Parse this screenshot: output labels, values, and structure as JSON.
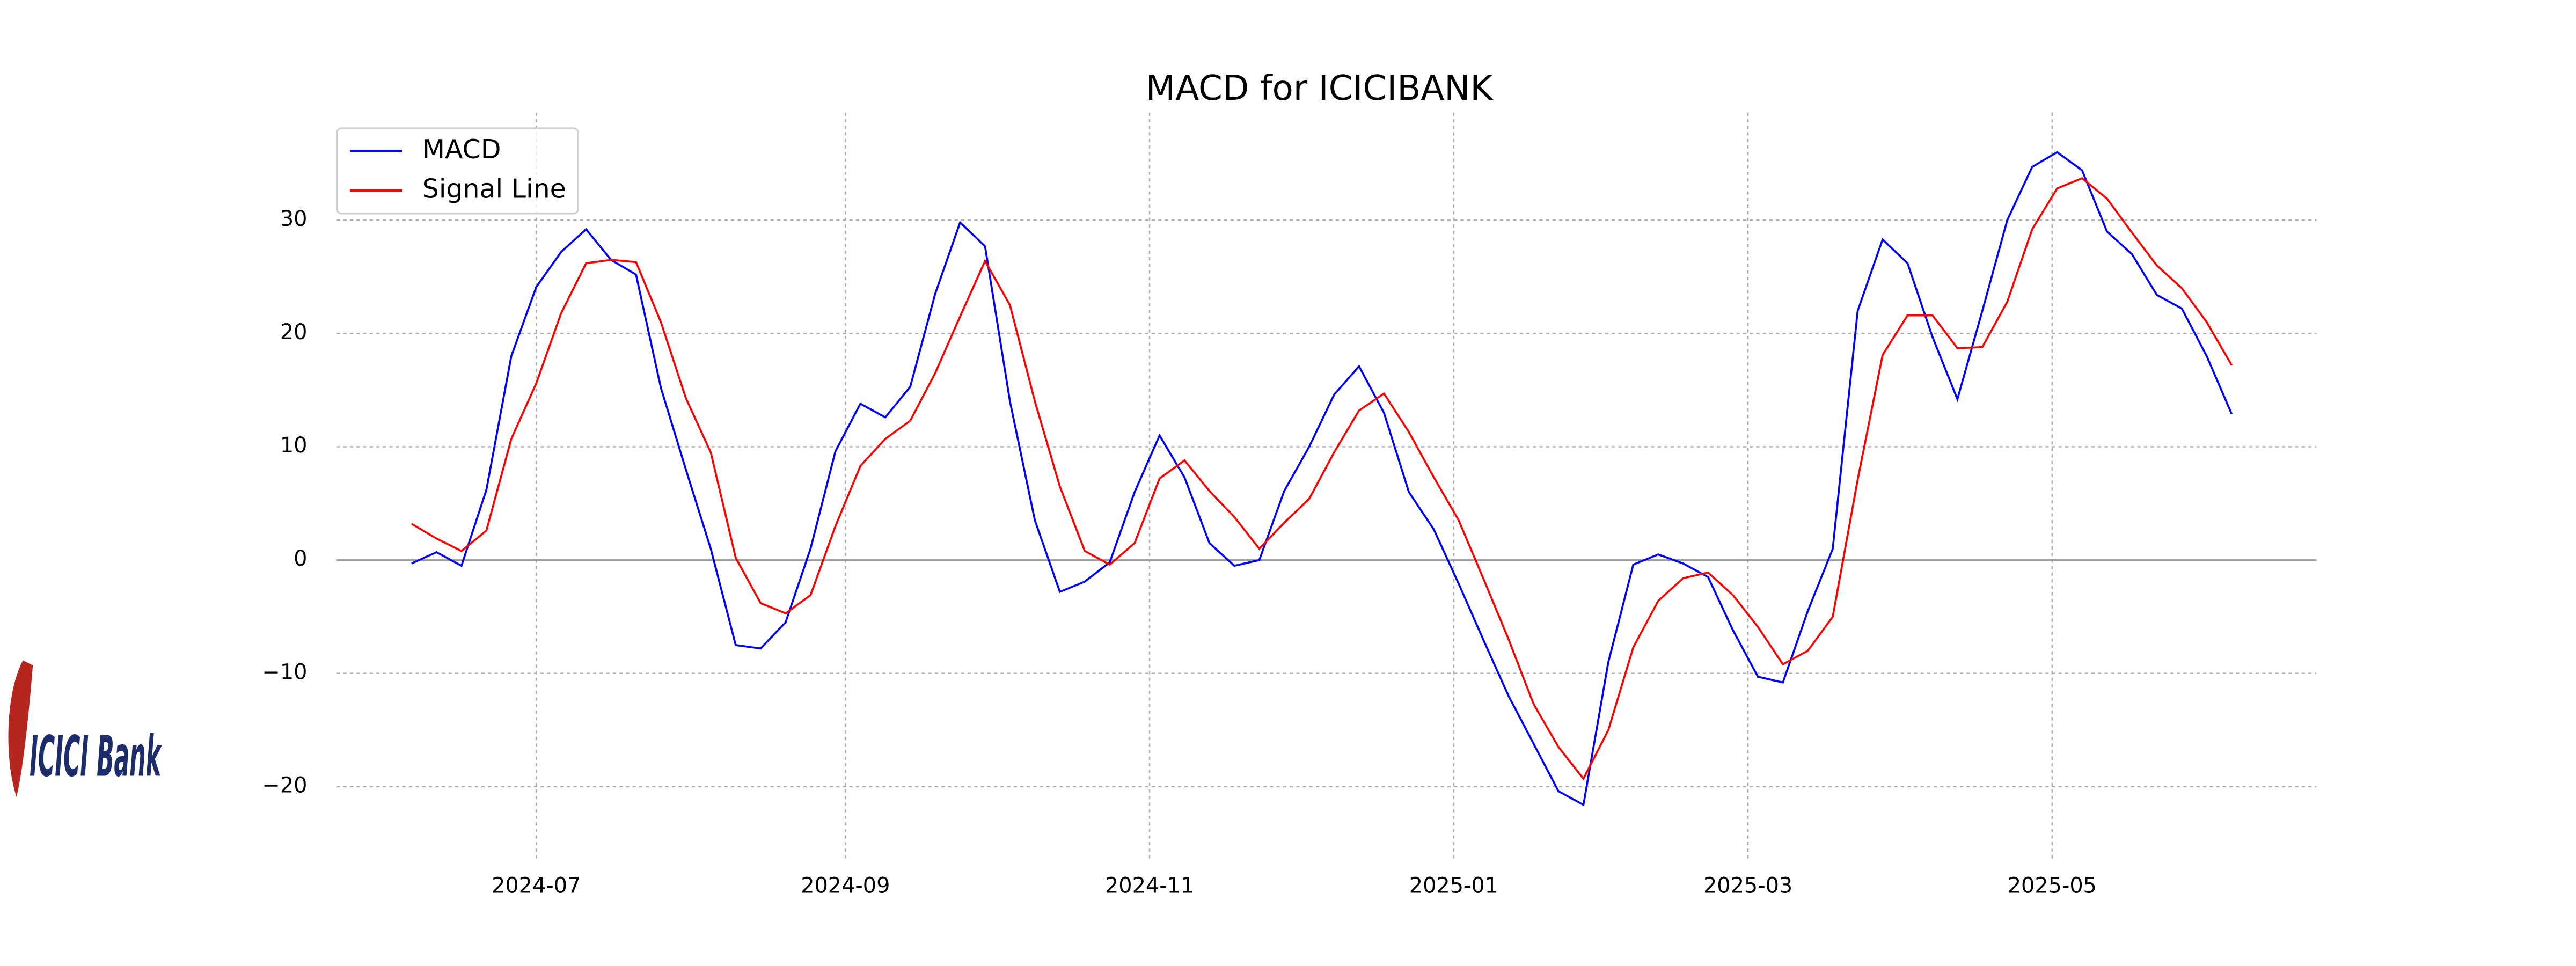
{
  "chart_data": {
    "type": "line",
    "title": "MACD for ICICIBANK",
    "x": [
      "2024-06-06",
      "2024-06-11",
      "2024-06-16",
      "2024-06-21",
      "2024-06-26",
      "2024-07-01",
      "2024-07-06",
      "2024-07-11",
      "2024-07-16",
      "2024-07-21",
      "2024-07-26",
      "2024-07-31",
      "2024-08-05",
      "2024-08-10",
      "2024-08-15",
      "2024-08-20",
      "2024-08-25",
      "2024-08-30",
      "2024-09-04",
      "2024-09-09",
      "2024-09-14",
      "2024-09-19",
      "2024-09-24",
      "2024-09-29",
      "2024-10-04",
      "2024-10-09",
      "2024-10-14",
      "2024-10-19",
      "2024-10-24",
      "2024-10-29",
      "2024-11-03",
      "2024-11-08",
      "2024-11-13",
      "2024-11-18",
      "2024-11-23",
      "2024-11-28",
      "2024-12-03",
      "2024-12-08",
      "2024-12-13",
      "2024-12-18",
      "2024-12-23",
      "2024-12-28",
      "2025-01-02",
      "2025-01-07",
      "2025-01-12",
      "2025-01-17",
      "2025-01-22",
      "2025-01-27",
      "2025-02-01",
      "2025-02-06",
      "2025-02-11",
      "2025-02-16",
      "2025-02-21",
      "2025-02-26",
      "2025-03-03",
      "2025-03-08",
      "2025-03-13",
      "2025-03-18",
      "2025-03-23",
      "2025-03-28",
      "2025-04-02",
      "2025-04-07",
      "2025-04-12",
      "2025-04-17",
      "2025-04-22",
      "2025-04-27",
      "2025-05-02",
      "2025-05-07",
      "2025-05-12",
      "2025-05-17",
      "2025-05-22",
      "2025-05-27",
      "2025-06-01",
      "2025-06-06"
    ],
    "series": [
      {
        "name": "MACD",
        "color": "#0000ff",
        "values": [
          -0.3,
          0.7,
          -0.5,
          6.2,
          18,
          24.1,
          27.2,
          29.2,
          26.5,
          25.2,
          15.2,
          8,
          1,
          -7.5,
          -7.8,
          -5.5,
          1,
          9.6,
          13.8,
          12.6,
          15.3,
          23.5,
          29.8,
          27.7,
          14,
          3.5,
          -2.8,
          -1.9,
          -0.2,
          6,
          11,
          7.3,
          1.5,
          -0.5,
          0,
          6.1,
          10,
          14.6,
          17.1,
          13,
          6,
          2.7,
          -2.1,
          -7.1,
          -12,
          -16.2,
          -20.4,
          -21.6,
          -9,
          -0.4,
          0.5,
          -0.3,
          -1.5,
          -6.2,
          -10.3,
          -10.8,
          -4.5,
          1,
          22,
          28.3,
          26.2,
          19.7,
          14.2,
          22,
          30,
          34.7,
          36,
          34.4,
          29,
          27,
          23.4,
          22.2,
          18,
          12.9
        ]
      },
      {
        "name": "Signal Line",
        "color": "#ff0000",
        "values": [
          3.2,
          1.9,
          0.8,
          2.6,
          10.7,
          15.6,
          21.8,
          26.2,
          26.5,
          26.3,
          21,
          14.3,
          9.5,
          0.2,
          -3.8,
          -4.7,
          -3.1,
          3,
          8.3,
          10.7,
          12.3,
          16.5,
          21.5,
          26.4,
          22.5,
          14,
          6.5,
          0.8,
          -0.4,
          1.5,
          7.2,
          8.8,
          6.1,
          3.8,
          1,
          3.3,
          5.4,
          9.5,
          13.2,
          14.7,
          11.3,
          7.3,
          3.5,
          -1.7,
          -7,
          -12.7,
          -16.5,
          -19.3,
          -15,
          -7.7,
          -3.6,
          -1.6,
          -1.1,
          -3.1,
          -5.9,
          -9.2,
          -8,
          -5,
          7.1,
          18.1,
          21.6,
          21.6,
          18.7,
          18.8,
          22.8,
          29.2,
          32.8,
          33.7,
          31.9,
          28.9,
          26,
          24,
          21,
          17.2
        ]
      }
    ],
    "xlim": [
      "2024-05-22",
      "2025-06-23"
    ],
    "xticks": [
      "2024-07",
      "2024-09",
      "2024-11",
      "2025-01",
      "2025-03",
      "2025-05"
    ],
    "ylim": [
      -26.4,
      39.5
    ],
    "yticks": [
      {
        "value": -20,
        "label": "−20"
      },
      {
        "value": -10,
        "label": "−10"
      },
      0,
      10,
      20,
      30
    ],
    "grid": true,
    "legend": "upper left"
  },
  "logo": {
    "text": "ICICI Bank"
  }
}
